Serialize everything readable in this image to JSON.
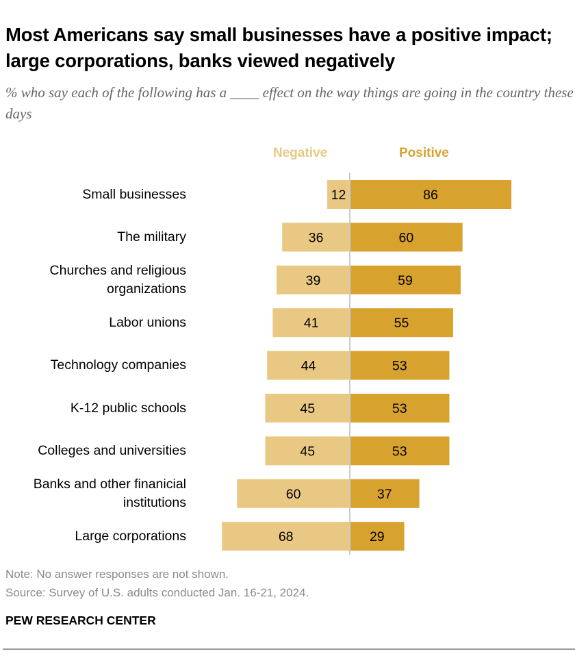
{
  "title": "Most Americans say small businesses have a positive impact; large corporations, banks viewed negatively",
  "subtitle": "% who say each of the following has a ____ effect on the way things are going in the country these days",
  "note": "Note: No answer responses are not shown.",
  "source": "Source: Survey of U.S. adults conducted Jan. 16-21, 2024.",
  "brand": "PEW RESEARCH CENTER",
  "colors": {
    "negative": "#E9C883",
    "positive": "#D8A22E",
    "center_line": "#CCCCCC"
  },
  "chart_data": {
    "type": "bar",
    "orientation": "horizontal-diverging",
    "legend": [
      "Negative",
      "Positive"
    ],
    "categories": [
      "Small businesses",
      "The military",
      "Churches and religious organizations",
      "Labor unions",
      "Technology companies",
      "K-12 public schools",
      "Colleges and universities",
      "Banks and other finanicial institutions",
      "Large corporations"
    ],
    "series": [
      {
        "name": "Negative",
        "values": [
          12,
          36,
          39,
          41,
          44,
          45,
          45,
          60,
          68
        ]
      },
      {
        "name": "Positive",
        "values": [
          86,
          60,
          59,
          55,
          53,
          53,
          53,
          37,
          29
        ]
      }
    ]
  }
}
